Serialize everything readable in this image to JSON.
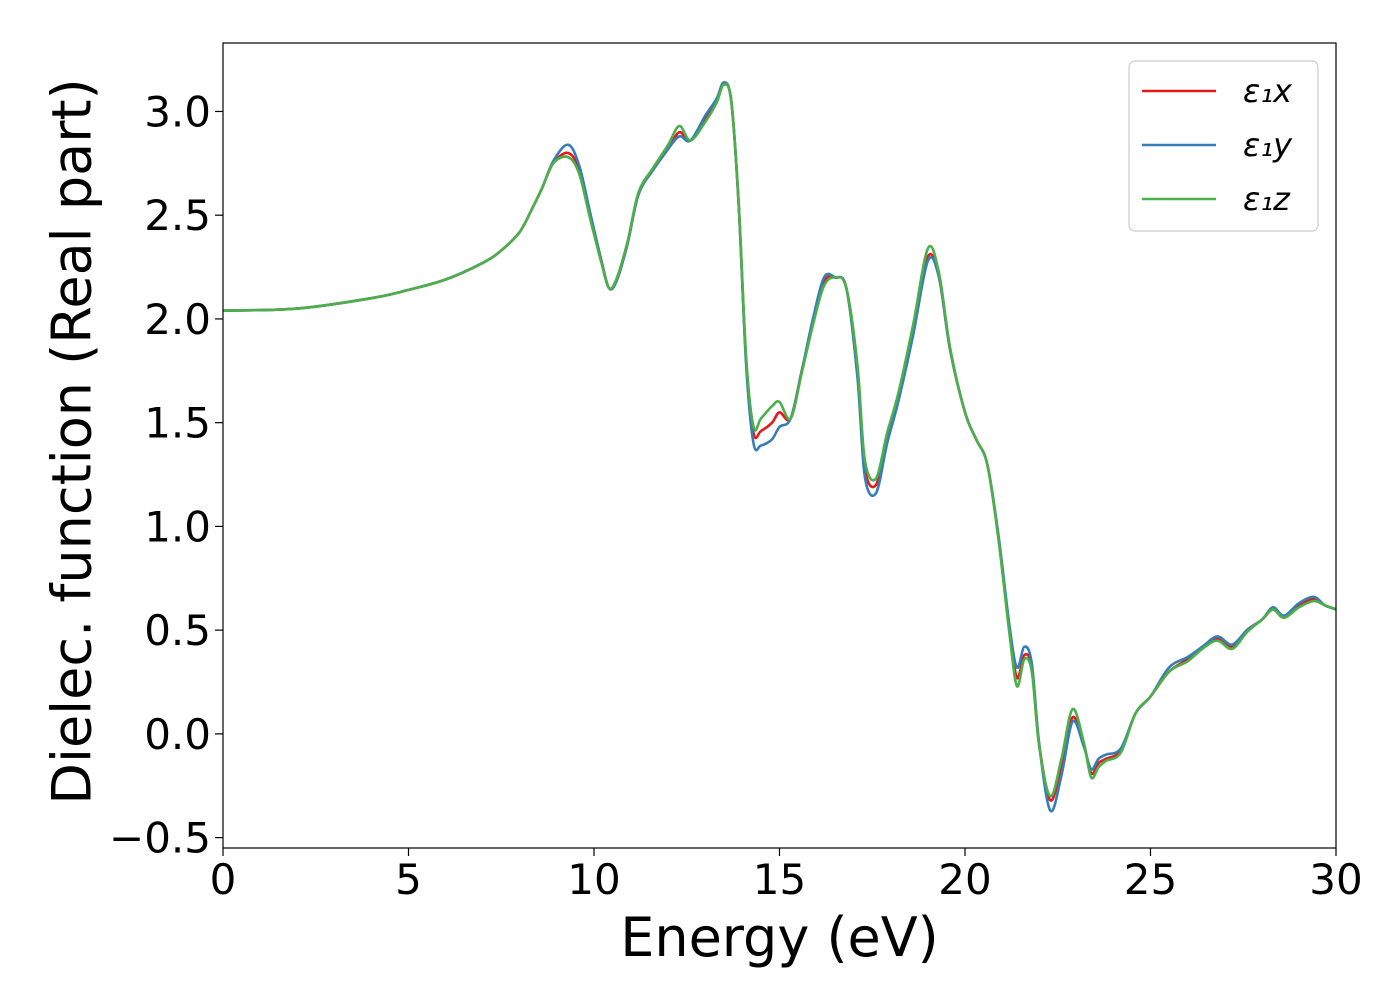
{
  "chart_data": {
    "type": "line",
    "xlabel": "Energy (eV)",
    "ylabel": "Dielec. function (Real part)",
    "xlim": [
      0,
      30
    ],
    "ylim": [
      -0.55,
      3.33
    ],
    "xticks": [
      0,
      5,
      10,
      15,
      20,
      25,
      30
    ],
    "xtick_labels": [
      "0",
      "5",
      "10",
      "15",
      "20",
      "25",
      "30"
    ],
    "yticks": [
      -0.5,
      0.0,
      0.5,
      1.0,
      1.5,
      2.0,
      2.5,
      3.0
    ],
    "ytick_labels": [
      "−0.5",
      "0.0",
      "0.5",
      "1.0",
      "1.5",
      "2.0",
      "2.5",
      "3.0"
    ],
    "grid": false,
    "legend_position": "top-right",
    "series": [
      {
        "name": "ε₁x",
        "color": "#e41a1c",
        "x": [
          0,
          2,
          4,
          5,
          6,
          7,
          7.5,
          8,
          8.3,
          8.6,
          8.9,
          9.3,
          9.6,
          9.9,
          10.2,
          10.4,
          10.6,
          10.9,
          11.2,
          11.6,
          12.0,
          12.3,
          12.6,
          13.0,
          13.3,
          13.5,
          13.7,
          13.9,
          14.1,
          14.3,
          14.5,
          14.8,
          15.0,
          15.3,
          15.6,
          15.9,
          16.2,
          16.5,
          16.8,
          17.1,
          17.3,
          17.6,
          17.9,
          18.2,
          18.6,
          19.0,
          19.3,
          19.6,
          20.0,
          20.3,
          20.6,
          20.9,
          21.2,
          21.4,
          21.6,
          21.8,
          22.0,
          22.3,
          22.6,
          22.9,
          23.2,
          23.4,
          23.6,
          23.8,
          24.2,
          24.6,
          25.0,
          25.5,
          26.0,
          26.4,
          26.8,
          27.2,
          27.6,
          28.0,
          28.3,
          28.6,
          29.0,
          29.4,
          29.7,
          30.0
        ],
        "y": [
          2.04,
          2.05,
          2.1,
          2.14,
          2.19,
          2.27,
          2.33,
          2.42,
          2.52,
          2.63,
          2.75,
          2.8,
          2.72,
          2.5,
          2.28,
          2.15,
          2.18,
          2.36,
          2.6,
          2.72,
          2.82,
          2.9,
          2.86,
          2.97,
          3.05,
          3.13,
          3.05,
          2.55,
          1.8,
          1.45,
          1.46,
          1.5,
          1.55,
          1.52,
          1.75,
          1.98,
          2.18,
          2.2,
          2.15,
          1.75,
          1.28,
          1.2,
          1.42,
          1.62,
          1.95,
          2.3,
          2.2,
          1.85,
          1.55,
          1.42,
          1.3,
          0.95,
          0.5,
          0.27,
          0.38,
          0.32,
          -0.05,
          -0.32,
          -0.15,
          0.08,
          -0.05,
          -0.19,
          -0.14,
          -0.12,
          -0.08,
          0.1,
          0.18,
          0.3,
          0.36,
          0.42,
          0.46,
          0.42,
          0.5,
          0.55,
          0.6,
          0.56,
          0.62,
          0.65,
          0.62,
          0.6
        ]
      },
      {
        "name": "ε₁y",
        "color": "#377eb8",
        "x": [
          0,
          2,
          4,
          5,
          6,
          7,
          7.5,
          8,
          8.3,
          8.6,
          8.9,
          9.3,
          9.6,
          9.9,
          10.2,
          10.4,
          10.6,
          10.9,
          11.2,
          11.6,
          12.0,
          12.3,
          12.6,
          13.0,
          13.3,
          13.5,
          13.7,
          13.9,
          14.1,
          14.3,
          14.5,
          14.8,
          15.0,
          15.3,
          15.6,
          15.9,
          16.2,
          16.5,
          16.8,
          17.1,
          17.3,
          17.6,
          17.9,
          18.2,
          18.6,
          19.0,
          19.3,
          19.6,
          20.0,
          20.3,
          20.6,
          20.9,
          21.2,
          21.4,
          21.6,
          21.8,
          22.0,
          22.3,
          22.6,
          22.9,
          23.2,
          23.4,
          23.6,
          23.8,
          24.2,
          24.6,
          25.0,
          25.5,
          26.0,
          26.4,
          26.8,
          27.2,
          27.6,
          28.0,
          28.3,
          28.6,
          29.0,
          29.4,
          29.7,
          30.0
        ],
        "y": [
          2.04,
          2.05,
          2.1,
          2.14,
          2.19,
          2.27,
          2.33,
          2.42,
          2.52,
          2.63,
          2.76,
          2.84,
          2.74,
          2.51,
          2.28,
          2.15,
          2.18,
          2.36,
          2.6,
          2.72,
          2.82,
          2.88,
          2.86,
          2.98,
          3.06,
          3.14,
          3.05,
          2.55,
          1.78,
          1.4,
          1.39,
          1.42,
          1.48,
          1.52,
          1.75,
          2.0,
          2.2,
          2.2,
          2.15,
          1.72,
          1.24,
          1.16,
          1.4,
          1.6,
          1.92,
          2.28,
          2.2,
          1.85,
          1.55,
          1.42,
          1.3,
          0.96,
          0.52,
          0.32,
          0.42,
          0.34,
          -0.05,
          -0.37,
          -0.2,
          0.06,
          -0.06,
          -0.17,
          -0.12,
          -0.1,
          -0.07,
          0.1,
          0.18,
          0.32,
          0.37,
          0.42,
          0.47,
          0.43,
          0.5,
          0.55,
          0.61,
          0.57,
          0.63,
          0.66,
          0.62,
          0.6
        ]
      },
      {
        "name": "ε₁z",
        "color": "#4daf4a",
        "x": [
          0,
          2,
          4,
          5,
          6,
          7,
          7.5,
          8,
          8.3,
          8.6,
          8.9,
          9.3,
          9.6,
          9.9,
          10.2,
          10.4,
          10.6,
          10.9,
          11.2,
          11.6,
          12.0,
          12.3,
          12.6,
          13.0,
          13.3,
          13.5,
          13.7,
          13.9,
          14.1,
          14.3,
          14.5,
          14.8,
          15.0,
          15.3,
          15.6,
          15.9,
          16.2,
          16.5,
          16.8,
          17.1,
          17.3,
          17.6,
          17.9,
          18.2,
          18.6,
          19.0,
          19.3,
          19.6,
          20.0,
          20.3,
          20.6,
          20.9,
          21.2,
          21.4,
          21.6,
          21.8,
          22.0,
          22.3,
          22.6,
          22.9,
          23.2,
          23.4,
          23.6,
          23.8,
          24.2,
          24.6,
          25.0,
          25.5,
          26.0,
          26.4,
          26.8,
          27.2,
          27.6,
          28.0,
          28.3,
          28.6,
          29.0,
          29.4,
          29.7,
          30.0
        ],
        "y": [
          2.04,
          2.05,
          2.1,
          2.14,
          2.19,
          2.27,
          2.33,
          2.42,
          2.52,
          2.63,
          2.75,
          2.78,
          2.7,
          2.48,
          2.27,
          2.15,
          2.19,
          2.37,
          2.61,
          2.73,
          2.84,
          2.93,
          2.86,
          2.95,
          3.04,
          3.13,
          3.05,
          2.56,
          1.82,
          1.48,
          1.52,
          1.58,
          1.6,
          1.52,
          1.74,
          1.97,
          2.16,
          2.2,
          2.15,
          1.78,
          1.32,
          1.23,
          1.45,
          1.64,
          1.97,
          2.34,
          2.22,
          1.86,
          1.55,
          1.42,
          1.3,
          0.94,
          0.48,
          0.23,
          0.36,
          0.3,
          -0.06,
          -0.3,
          -0.12,
          0.12,
          -0.04,
          -0.21,
          -0.16,
          -0.13,
          -0.09,
          0.1,
          0.18,
          0.3,
          0.35,
          0.41,
          0.45,
          0.41,
          0.49,
          0.55,
          0.6,
          0.56,
          0.61,
          0.64,
          0.62,
          0.6
        ]
      }
    ]
  }
}
